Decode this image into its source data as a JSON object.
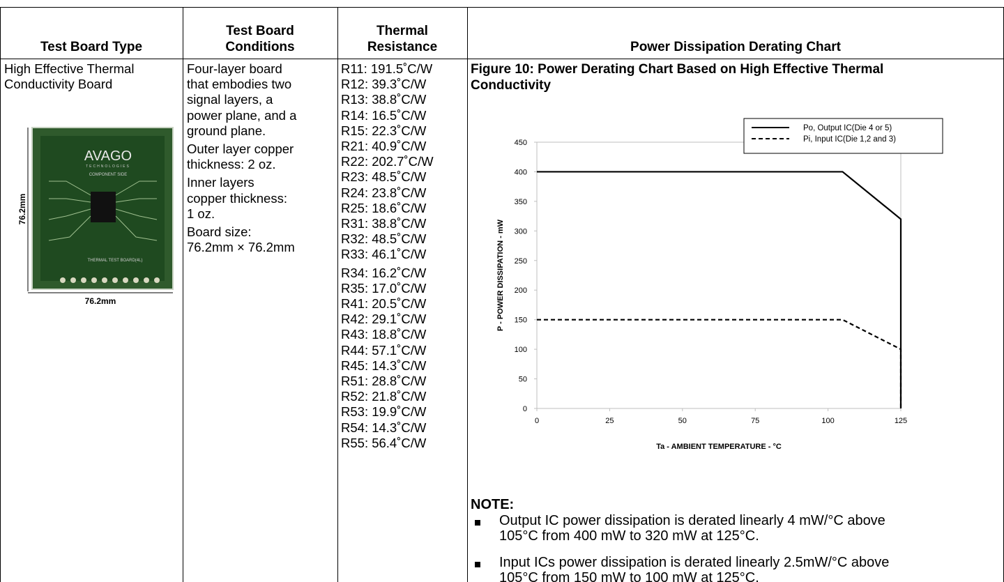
{
  "table": {
    "headers": [
      [
        "Test Board Type"
      ],
      [
        "Test Board",
        "Conditions"
      ],
      [
        "Thermal",
        "Resistance"
      ],
      [
        "Power Dissipation Derating Chart"
      ]
    ],
    "board_type": [
      "High Effective Thermal",
      "Conductivity Board"
    ],
    "board_image": {
      "brand": "AVAGO",
      "subbrand": "TECHNOLOGIES",
      "side": "COMPONENT SIDE",
      "board_name": "THERMAL TEST BOARD(4L)",
      "height_label": "76.2mm",
      "width_label": "76.2mm"
    },
    "conditions": [
      [
        "Four-layer board",
        "that embodies two",
        "signal layers, a",
        "power plane, and a",
        "ground plane."
      ],
      [
        "Outer layer copper",
        "thickness: 2 oz."
      ],
      [
        "Inner layers",
        "copper thickness:",
        "1 oz."
      ],
      [
        "Board size:",
        "76.2mm × 76.2mm"
      ]
    ],
    "resistances": [
      "R11: 191.5˚C/W",
      "R12: 39.3˚C/W",
      "R13: 38.8˚C/W",
      "R14: 16.5˚C/W",
      "R15: 22.3˚C/W",
      "R21: 40.9˚C/W",
      "R22: 202.7˚C/W",
      "R23: 48.5˚C/W",
      "R24: 23.8˚C/W",
      "R25: 18.6˚C/W",
      "R31: 38.8˚C/W",
      "R32: 48.5˚C/W",
      "R33: 46.1˚C/W",
      "R34: 16.2˚C/W",
      "R35: 17.0˚C/W",
      "R41: 20.5˚C/W",
      "R42: 29.1˚C/W",
      "R43: 18.8˚C/W",
      "R44: 57.1˚C/W",
      "R45: 14.3˚C/W",
      "R51: 28.8˚C/W",
      "R52: 21.8˚C/W",
      "R53: 19.9˚C/W",
      "R54: 14.3˚C/W",
      "R55: 56.4˚C/W"
    ],
    "figure_title": [
      "Figure 10:  Power Derating Chart Based on High Effective Thermal",
      "Conductivity"
    ],
    "note_title": "NOTE:",
    "notes": [
      [
        "Output IC power dissipation is derated linearly 4 mW/°C above",
        "105°C from 400 mW to 320 mW at 125°C."
      ],
      [
        "Input ICs power dissipation is derated linearly 2.5mW/°C above",
        "105°C from 150 mW to 100 mW at 125°C."
      ]
    ]
  },
  "chart_data": {
    "type": "line",
    "x_label": "Ta - AMBIENT TEMPERATURE - °C",
    "y_label": "P - POWER DISSIPATION - mW",
    "xlim": [
      0,
      125
    ],
    "xticks": [
      0,
      25,
      50,
      75,
      100,
      125
    ],
    "ylim": [
      0,
      450
    ],
    "yticks": [
      0,
      50,
      100,
      150,
      200,
      250,
      300,
      350,
      400,
      450
    ],
    "grid": false,
    "legend": "top-right",
    "series": [
      {
        "name": "Po,  Output IC(Die 4 or 5)",
        "color": "#000000",
        "dash": "solid",
        "x": [
          0,
          105,
          125,
          125
        ],
        "values": [
          400,
          400,
          320,
          0
        ]
      },
      {
        "name": "Pi,  Input IC(Die 1,2 and 3)",
        "color": "#000000",
        "dash": "dashed",
        "x": [
          0,
          105,
          125,
          125
        ],
        "values": [
          150,
          150,
          100,
          0
        ]
      }
    ]
  }
}
